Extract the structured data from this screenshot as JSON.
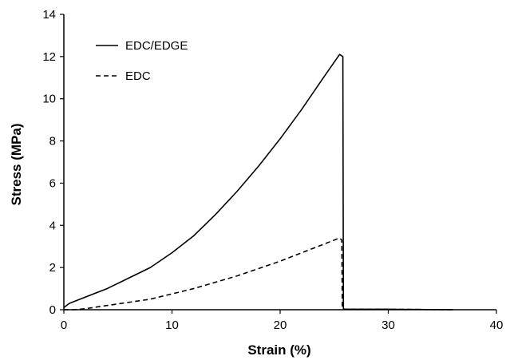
{
  "chart_data": {
    "type": "line",
    "title": "",
    "xlabel": "Strain (%)",
    "ylabel": "Stress (MPa)",
    "xlim": [
      0,
      40
    ],
    "ylim": [
      0,
      14
    ],
    "xticks": [
      0,
      10,
      20,
      30,
      40
    ],
    "yticks": [
      0,
      2,
      4,
      6,
      8,
      10,
      12,
      14
    ],
    "grid": false,
    "legend": "top-left",
    "series": [
      {
        "name": "EDC/EDGE",
        "style": "solid",
        "color": "#000000",
        "x": [
          0,
          0.5,
          2,
          4,
          6,
          8,
          10,
          12,
          14,
          16,
          18,
          20,
          22,
          24,
          25.5,
          25.8,
          25.85,
          26,
          30,
          36
        ],
        "y": [
          0.1,
          0.3,
          0.6,
          1.0,
          1.5,
          2.0,
          2.7,
          3.5,
          4.5,
          5.6,
          6.8,
          8.1,
          9.5,
          11.0,
          12.1,
          12.0,
          0.05,
          0.02,
          0.02,
          0.0
        ]
      },
      {
        "name": "EDC",
        "style": "dashed",
        "color": "#000000",
        "x": [
          0,
          1,
          2,
          4,
          6,
          8,
          10,
          12,
          14,
          16,
          18,
          20,
          22,
          24,
          25.5,
          25.7,
          25.75,
          26,
          30,
          36
        ],
        "y": [
          0.0,
          0.0,
          0.05,
          0.2,
          0.35,
          0.5,
          0.75,
          1.0,
          1.3,
          1.6,
          1.95,
          2.3,
          2.7,
          3.1,
          3.4,
          3.3,
          0.05,
          0.02,
          0.02,
          0.0
        ]
      }
    ]
  }
}
